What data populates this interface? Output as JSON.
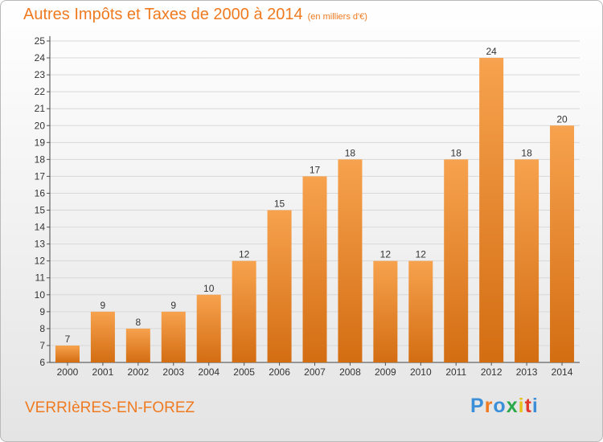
{
  "header": {
    "title": "Autres Impôts et Taxes de 2000 à 2014",
    "unit": "(en milliers d'€)"
  },
  "footer": {
    "commune": "VERRIèRES-EN-FOREZ"
  },
  "logo": {
    "text": "Proxiti",
    "colors": [
      "#3a8fd8",
      "#ef7a1f",
      "#3a8fd8",
      "#2aa84a",
      "#e8c21c",
      "#e23a2a",
      "#3a8fd8"
    ]
  },
  "colors": {
    "bar_light": "#f7a24e",
    "bar_dark": "#d36d12",
    "title": "#ef7a1f",
    "grid": "#d8d8d8"
  },
  "chart_data": {
    "type": "bar",
    "categories": [
      "2000",
      "2001",
      "2002",
      "2003",
      "2004",
      "2005",
      "2006",
      "2007",
      "2008",
      "2009",
      "2010",
      "2011",
      "2012",
      "2013",
      "2014"
    ],
    "values": [
      7,
      9,
      8,
      9,
      10,
      12,
      15,
      17,
      18,
      12,
      12,
      18,
      24,
      18,
      20
    ],
    "ylim": [
      6,
      25
    ],
    "yticks": [
      6,
      7,
      8,
      9,
      10,
      11,
      12,
      13,
      14,
      15,
      16,
      17,
      18,
      19,
      20,
      21,
      22,
      23,
      24,
      25
    ],
    "grid": true,
    "data_labels": true
  }
}
